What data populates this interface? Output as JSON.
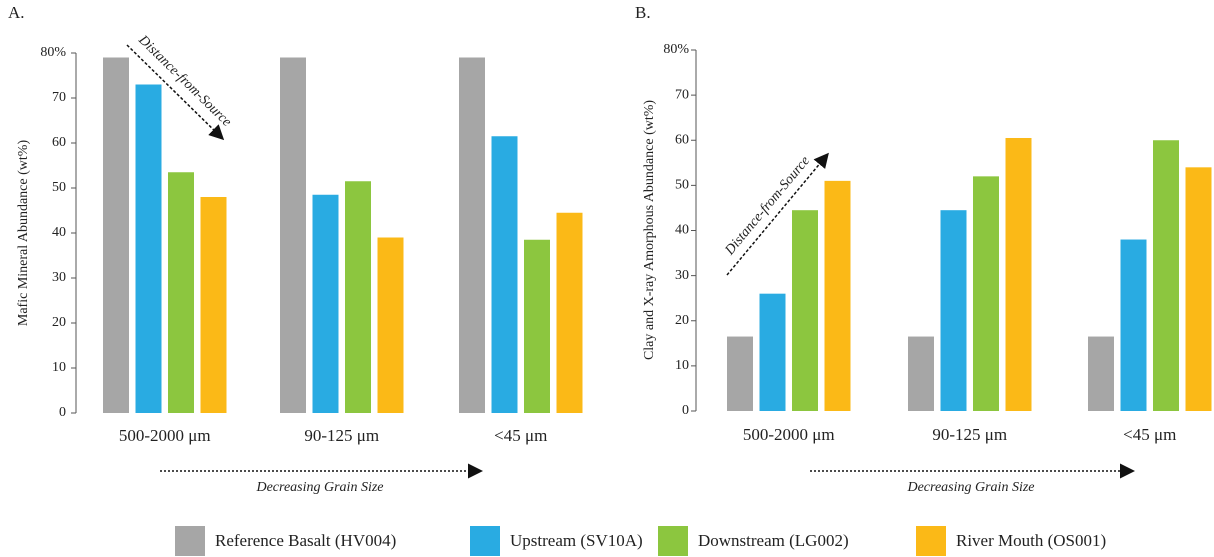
{
  "chart_data": [
    {
      "type": "bar",
      "panel_label": "A.",
      "y_label": "Mafic Mineral Abundance (wt%)",
      "categories": [
        "500-2000 μm",
        "90-125 μm",
        "<45 μm"
      ],
      "series": [
        {
          "name": "Reference Basalt (HV004)",
          "color": "#a6a6a6",
          "values": [
            79,
            79,
            79
          ]
        },
        {
          "name": "Upstream (SV10A)",
          "color": "#29abe2",
          "values": [
            73,
            48.5,
            61.5
          ]
        },
        {
          "name": "Downstream (LG002)",
          "color": "#8cc63f",
          "values": [
            53.5,
            51.5,
            38.5
          ]
        },
        {
          "name": "River Mouth (OS001)",
          "color": "#fbb917",
          "values": [
            48,
            39,
            44.5
          ]
        }
      ],
      "ylim": [
        0,
        80
      ],
      "yticks": [
        0,
        10,
        20,
        30,
        40,
        50,
        60,
        70,
        {
          "value": 80,
          "label": "80%"
        }
      ],
      "grid": false,
      "annotations": [
        "Distance-from-Source",
        "Decreasing Grain Size"
      ]
    },
    {
      "type": "bar",
      "panel_label": "B.",
      "y_label": "Clay and X-ray Amorphous Abundance (wt%)",
      "categories": [
        "500-2000 μm",
        "90-125 μm",
        "<45 μm"
      ],
      "series": [
        {
          "color": "#a6a6a6",
          "values": [
            16.5,
            16.5,
            16.5
          ]
        },
        {
          "color": "#29abe2",
          "values": [
            26,
            44.5,
            38
          ]
        },
        {
          "color": "#8cc63f",
          "values": [
            44.5,
            52,
            60
          ]
        },
        {
          "color": "#fbb917",
          "values": [
            51,
            60.5,
            54
          ]
        }
      ],
      "ylim": [
        0,
        80
      ],
      "yticks": [
        0,
        10,
        20,
        30,
        40,
        50,
        60,
        70,
        {
          "value": 80,
          "label": "80%"
        }
      ],
      "grid": false,
      "annotations": [
        "Distance-from-Source",
        "Decreasing Grain Size"
      ]
    }
  ]
}
